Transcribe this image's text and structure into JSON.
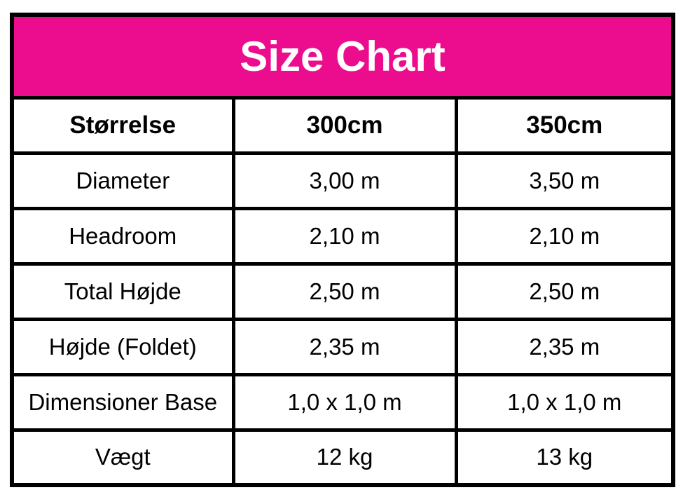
{
  "header": {
    "title": "Size Chart"
  },
  "colors": {
    "title_bg": "#EC0C8E",
    "title_text": "#FFFFFF",
    "border": "#000000",
    "cell_bg": "#FFFFFF",
    "cell_text": "#000000"
  },
  "table": {
    "columns": [
      "Størrelse",
      "300cm",
      "350cm"
    ],
    "rows": [
      {
        "label": "Diameter",
        "values": [
          "3,00 m",
          "3,50 m"
        ]
      },
      {
        "label": "Headroom",
        "values": [
          "2,10 m",
          "2,10 m"
        ]
      },
      {
        "label": "Total Højde",
        "values": [
          "2,50 m",
          "2,50 m"
        ]
      },
      {
        "label": "Højde (Foldet)",
        "values": [
          "2,35 m",
          "2,35 m"
        ]
      },
      {
        "label": "Dimensioner Base",
        "values": [
          "1,0 x 1,0 m",
          "1,0 x 1,0 m"
        ]
      },
      {
        "label": "Vægt",
        "values": [
          "12 kg",
          "13 kg"
        ]
      }
    ]
  }
}
